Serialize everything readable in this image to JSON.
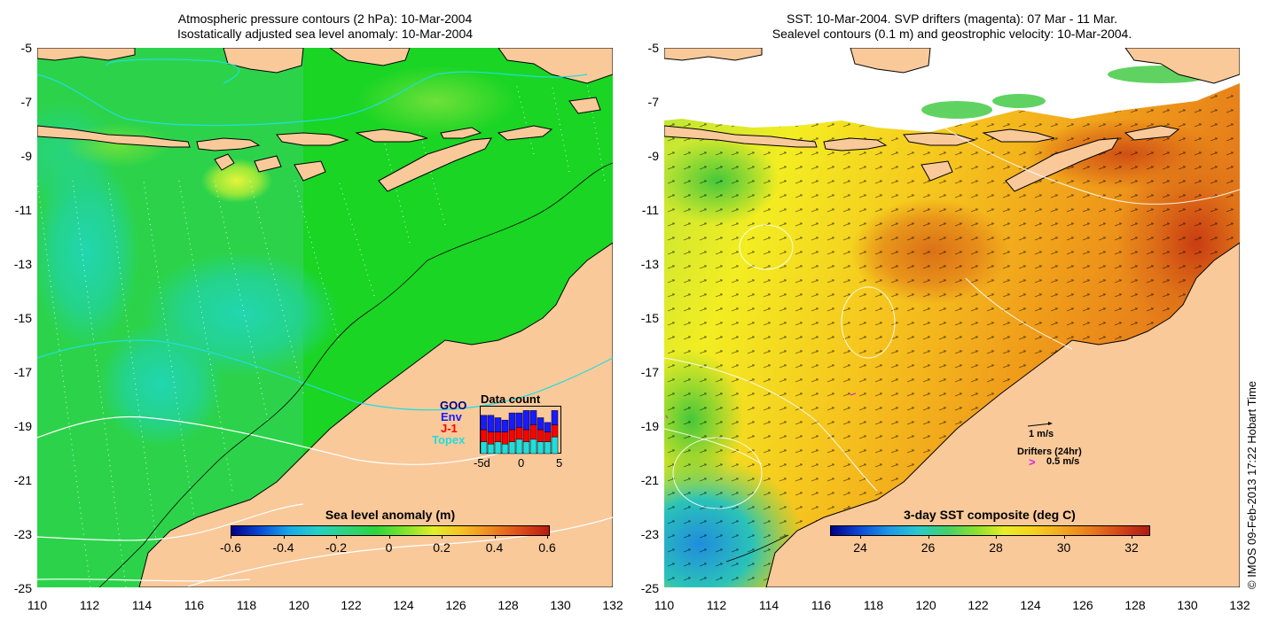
{
  "left_panel": {
    "title_line1": "Atmospheric pressure contours (2 hPa): 10-Mar-2004",
    "title_line2": "Isostatically adjusted sea level anomaly: 10-Mar-2004",
    "colorbar": {
      "title": "Sea level anomaly (m)",
      "ticks": [
        "-0.6",
        "-0.4",
        "-0.2",
        "0",
        "0.2",
        "0.4",
        "0.6"
      ]
    },
    "legend": {
      "labels": [
        {
          "text": "GOO",
          "color": "#000080"
        },
        {
          "text": "Env",
          "color": "#1a1aff"
        },
        {
          "text": "J-1",
          "color": "#ff0000"
        },
        {
          "text": "Topex",
          "color": "#22dddd"
        }
      ],
      "data_count_title": "Data count",
      "axis_ticks": [
        "-5d",
        "0",
        "5"
      ],
      "bars": [
        {
          "topex": 0.25,
          "j1": 0.25,
          "env": 0.3
        },
        {
          "topex": 0.2,
          "j1": 0.25,
          "env": 0.35
        },
        {
          "topex": 0.25,
          "j1": 0.2,
          "env": 0.3
        },
        {
          "topex": 0.2,
          "j1": 0.25,
          "env": 0.25
        },
        {
          "topex": 0.25,
          "j1": 0.25,
          "env": 0.35
        },
        {
          "topex": 0.3,
          "j1": 0.25,
          "env": 0.3
        },
        {
          "topex": 0.25,
          "j1": 0.25,
          "env": 0.4
        },
        {
          "topex": 0.3,
          "j1": 0.3,
          "env": 0.3
        },
        {
          "topex": 0.25,
          "j1": 0.25,
          "env": 0.25
        },
        {
          "topex": 0.25,
          "j1": 0.2,
          "env": 0.2
        },
        {
          "topex": 0.35,
          "j1": 0.25,
          "env": 0.3
        }
      ]
    }
  },
  "right_panel": {
    "title_line1": "SST: 10-Mar-2004. SVP drifters (magenta): 07 Mar - 11 Mar.",
    "title_line2": "Sealevel contours (0.1 m) and geostrophic velocity: 10-Mar-2004.",
    "colorbar": {
      "title": "3-day SST composite (deg C)",
      "ticks": [
        "24",
        "26",
        "28",
        "30",
        "32"
      ]
    },
    "velocity_scale_label": "1 m/s",
    "drifters_label": "Drifters (24hr)",
    "drifter_symbol": ">",
    "drifter_scale_label": "0.5 m/s"
  },
  "axes": {
    "y_ticks": [
      "-5",
      "-7",
      "-9",
      "-11",
      "-13",
      "-15",
      "-17",
      "-19",
      "-21",
      "-23",
      "-25"
    ],
    "x_ticks": [
      "110",
      "112",
      "114",
      "116",
      "118",
      "120",
      "122",
      "124",
      "126",
      "128",
      "130",
      "132"
    ]
  },
  "copyright": "© IMOS 09-Feb-2013 17:22 Hobart Time",
  "colors": {
    "land": "#f9c99a",
    "ocean_sla": "#1ecc2c",
    "magenta": "#dd22dd"
  }
}
